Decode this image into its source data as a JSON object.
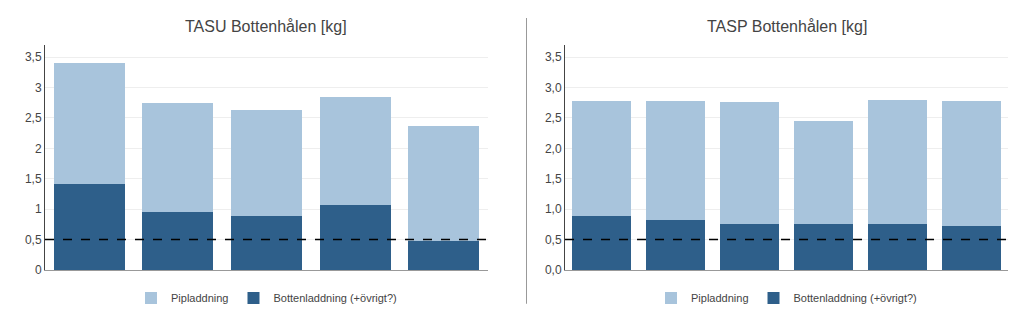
{
  "chart_data": [
    {
      "type": "bar",
      "title": "TASU Bottenhålen [kg]",
      "stacked": true,
      "categories": [
        null,
        null,
        null,
        null,
        null
      ],
      "series": [
        {
          "name": "Bottenladdning (+övrigt?)",
          "color": "#2E5F8A",
          "values": [
            1.42,
            0.95,
            0.88,
            1.07,
            0.48
          ]
        },
        {
          "name": "Pipladdning",
          "color": "#A8C4DC",
          "values": [
            1.98,
            1.8,
            1.75,
            1.78,
            1.88
          ]
        }
      ],
      "ylim": [
        0,
        3.7
      ],
      "yticks": [
        0,
        {
          "value": 0.5,
          "label": "0,5"
        },
        1,
        {
          "value": 1.5,
          "label": "1,5"
        },
        2,
        {
          "value": 2.5,
          "label": "2,5"
        },
        3,
        {
          "value": 3.5,
          "label": "3,5"
        }
      ],
      "hline": {
        "y": 0.5,
        "line_style": "dashed",
        "color": "#000000"
      },
      "grid": true,
      "legend": "bottom",
      "tick_labels": "y"
    },
    {
      "type": "bar",
      "title": "TASP Bottenhålen [kg]",
      "stacked": true,
      "categories": [
        null,
        null,
        null,
        null,
        null,
        null
      ],
      "series": [
        {
          "name": "Bottenladdning (+övrigt?)",
          "color": "#2E5F8A",
          "values": [
            0.88,
            0.83,
            0.75,
            0.75,
            0.75,
            0.73
          ]
        },
        {
          "name": "Pipladdning",
          "color": "#A8C4DC",
          "values": [
            1.9,
            1.95,
            2.02,
            1.7,
            2.05,
            2.05
          ]
        }
      ],
      "ylim": [
        0,
        3.7
      ],
      "yticks": [
        {
          "value": 0,
          "label": "0,0"
        },
        {
          "value": 0.5,
          "label": "0,5"
        },
        {
          "value": 1.0,
          "label": "1,0"
        },
        {
          "value": 1.5,
          "label": "1,5"
        },
        {
          "value": 2.0,
          "label": "2,0"
        },
        {
          "value": 2.5,
          "label": "2,5"
        },
        {
          "value": 3.0,
          "label": "3,0"
        },
        {
          "value": 3.5,
          "label": "3,5"
        }
      ],
      "hline": {
        "y": 0.5,
        "line_style": "dashed",
        "color": "#000000"
      },
      "grid": true,
      "legend": "bottom",
      "tick_labels": "y"
    }
  ]
}
